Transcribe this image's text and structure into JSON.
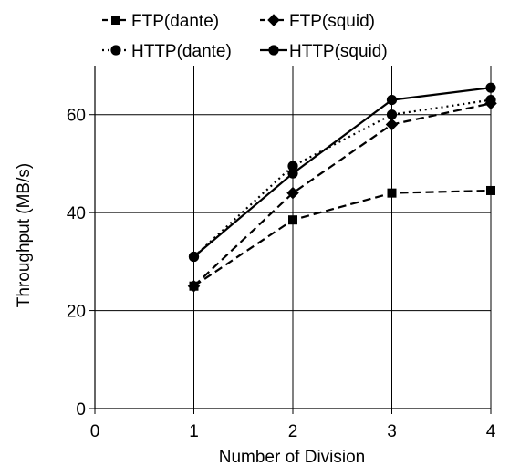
{
  "chart_data": {
    "type": "line",
    "title": "",
    "xlabel": "Number of Division",
    "ylabel": "Throughput (MB/s)",
    "xlim": [
      0,
      4
    ],
    "ylim": [
      0,
      70
    ],
    "xticks": [
      0,
      1,
      2,
      3,
      4
    ],
    "yticks": [
      0,
      20,
      40,
      60
    ],
    "grid": true,
    "legend_position": "top",
    "x": [
      1,
      2,
      3,
      4
    ],
    "series": [
      {
        "name": "FTP(dante)",
        "values": [
          25,
          38.5,
          44,
          44.5
        ],
        "marker": "square",
        "line": "dashed"
      },
      {
        "name": "FTP(squid)",
        "values": [
          25,
          44,
          58,
          62.3
        ],
        "marker": "diamond",
        "line": "dashed"
      },
      {
        "name": "HTTP(dante)",
        "values": [
          31,
          49.5,
          60,
          63
        ],
        "marker": "circle",
        "line": "dotted"
      },
      {
        "name": "HTTP(squid)",
        "values": [
          31,
          48,
          63,
          65.5
        ],
        "marker": "circle",
        "line": "solid"
      }
    ]
  }
}
